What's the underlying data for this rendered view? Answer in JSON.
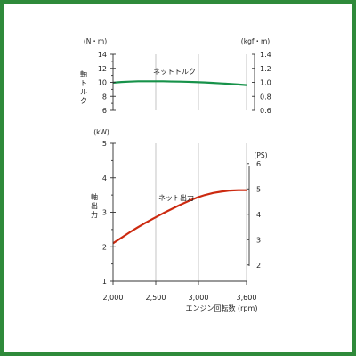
{
  "chart_data": [
    {
      "type": "line",
      "title": "",
      "ylabel": "軸トルク",
      "ylabel_chars": [
        "軸",
        "ト",
        "ル",
        "ク"
      ],
      "y_unit": "(N・m)",
      "y2_unit": "(kgf・m)",
      "ylim": [
        6,
        14
      ],
      "y2lim": [
        0.6,
        1.4
      ],
      "yticks": [
        "6",
        "8",
        "10",
        "12",
        "14"
      ],
      "y2ticks": [
        "0.6",
        "0.8",
        "1.0",
        "1.2",
        "1.4"
      ],
      "xlim": [
        2000,
        3600
      ],
      "grid": true,
      "series": [
        {
          "name": "ネットトルク",
          "color": "#17924a",
          "x": [
            2000,
            2100,
            2200,
            2300,
            2400,
            2500,
            2600,
            2700,
            2800,
            2900,
            3000,
            3100,
            3200,
            3300,
            3400,
            3500,
            3600
          ],
          "values": [
            9.95,
            10.05,
            10.1,
            10.15,
            10.15,
            10.15,
            10.15,
            10.12,
            10.1,
            10.07,
            10.03,
            9.98,
            9.92,
            9.85,
            9.78,
            9.7,
            9.6
          ]
        }
      ]
    },
    {
      "type": "line",
      "title": "",
      "ylabel": "軸出力",
      "ylabel_chars": [
        "軸",
        "出",
        "力"
      ],
      "y_unit": "(kW)",
      "y2_unit": "(PS)",
      "ylim": [
        1,
        5
      ],
      "y2lim": [
        1.36,
        6.8
      ],
      "yticks": [
        "1",
        "2",
        "3",
        "4",
        "5"
      ],
      "y2ticks": [
        "2",
        "3",
        "4",
        "5",
        "6"
      ],
      "xlabel": "エンジン回転数 (rpm)",
      "xlim": [
        2000,
        3600
      ],
      "xticks": [
        "2,000",
        "2,500",
        "3,000",
        "3,600"
      ],
      "grid": true,
      "series": [
        {
          "name": "ネット出力",
          "color": "#cc2a10",
          "x": [
            2000,
            2100,
            2200,
            2300,
            2400,
            2500,
            2600,
            2700,
            2800,
            2900,
            3000,
            3100,
            3200,
            3300,
            3400,
            3500,
            3600
          ],
          "values": [
            2.1,
            2.26,
            2.42,
            2.57,
            2.71,
            2.84,
            2.97,
            3.09,
            3.21,
            3.32,
            3.42,
            3.5,
            3.56,
            3.6,
            3.63,
            3.64,
            3.64
          ]
        }
      ]
    }
  ]
}
